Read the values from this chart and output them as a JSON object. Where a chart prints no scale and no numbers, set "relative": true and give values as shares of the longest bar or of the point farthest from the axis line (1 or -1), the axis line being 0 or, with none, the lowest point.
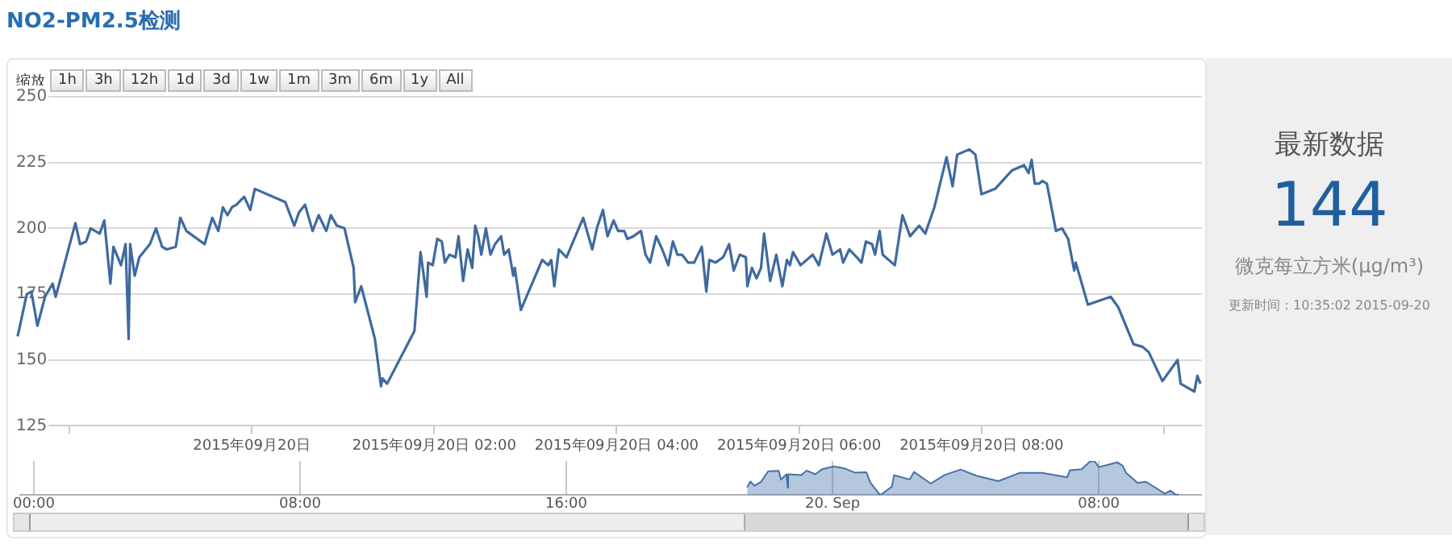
{
  "chart_data": [
    {
      "type": "line",
      "title": "NO2-PM2.5检测",
      "color": "#3f6a9e",
      "grid": "y",
      "marker": "none",
      "annotations": [
        "缩放",
        "1h",
        "3h",
        "12h",
        "1d",
        "3d",
        "1w",
        "1m",
        "3m",
        "6m",
        "1y",
        "All"
      ],
      "xlim": [
        "2015-09-19T21:25",
        "2015-09-20T10:25"
      ],
      "ylim": [
        125,
        250
      ],
      "yticks": [
        125,
        150,
        175,
        200,
        225,
        250
      ],
      "xticks": [
        {
          "value": "2015-09-19T22:00",
          "label": null
        },
        {
          "value": "2015-09-20T00:00",
          "label": "2015年09月20日"
        },
        {
          "value": "2015-09-20T02:00",
          "label": "2015年09月20日 02:00"
        },
        {
          "value": "2015-09-20T04:00",
          "label": "2015年09月20日 04:00"
        },
        {
          "value": "2015-09-20T06:00",
          "label": "2015年09月20日 06:00"
        },
        {
          "value": "2015-09-20T08:00",
          "label": "2015年09月20日 08:00"
        },
        {
          "value": "2015-09-20T10:00",
          "label": null
        }
      ],
      "x": [
        "2015-09-19T21:26",
        "2015-09-19T21:32",
        "2015-09-19T21:35",
        "2015-09-19T21:39",
        "2015-09-19T21:44",
        "2015-09-19T21:49",
        "2015-09-19T21:51",
        "2015-09-19T22:04",
        "2015-09-19T22:07",
        "2015-09-19T22:11",
        "2015-09-19T22:14",
        "2015-09-19T22:20",
        "2015-09-19T22:23",
        "2015-09-19T22:27",
        "2015-09-19T22:29",
        "2015-09-19T22:34",
        "2015-09-19T22:37",
        "2015-09-19T22:39",
        "2015-09-19T22:40",
        "2015-09-19T22:43",
        "2015-09-19T22:46",
        "2015-09-19T22:53",
        "2015-09-19T22:57",
        "2015-09-19T23:01",
        "2015-09-19T23:04",
        "2015-09-19T23:10",
        "2015-09-19T23:13",
        "2015-09-19T23:17",
        "2015-09-19T23:29",
        "2015-09-19T23:34",
        "2015-09-19T23:38",
        "2015-09-19T23:41",
        "2015-09-19T23:44",
        "2015-09-19T23:47",
        "2015-09-19T23:50",
        "2015-09-19T23:55",
        "2015-09-19T23:59",
        "2015-09-20T00:02",
        "2015-09-20T00:22",
        "2015-09-20T00:28",
        "2015-09-20T00:31",
        "2015-09-20T00:35",
        "2015-09-20T00:40",
        "2015-09-20T00:44",
        "2015-09-20T00:49",
        "2015-09-20T00:52",
        "2015-09-20T00:56",
        "2015-09-20T01:01",
        "2015-09-20T01:07",
        "2015-09-20T01:08",
        "2015-09-20T01:12",
        "2015-09-20T01:21",
        "2015-09-20T01:25",
        "2015-09-20T01:26",
        "2015-09-20T01:29",
        "2015-09-20T01:47",
        "2015-09-20T01:51",
        "2015-09-20T01:55",
        "2015-09-20T01:56",
        "2015-09-20T01:59",
        "2015-09-20T02:02",
        "2015-09-20T02:05",
        "2015-09-20T02:07",
        "2015-09-20T02:10",
        "2015-09-20T02:14",
        "2015-09-20T02:16",
        "2015-09-20T02:19",
        "2015-09-20T02:22",
        "2015-09-20T02:25",
        "2015-09-20T02:27",
        "2015-09-20T02:29",
        "2015-09-20T02:31",
        "2015-09-20T02:34",
        "2015-09-20T02:37",
        "2015-09-20T02:40",
        "2015-09-20T02:44",
        "2015-09-20T02:46",
        "2015-09-20T02:49",
        "2015-09-20T02:52",
        "2015-09-20T02:53",
        "2015-09-20T02:57",
        "2015-09-20T03:11",
        "2015-09-20T03:15",
        "2015-09-20T03:17",
        "2015-09-20T03:19",
        "2015-09-20T03:22",
        "2015-09-20T03:27",
        "2015-09-20T03:38",
        "2015-09-20T03:40",
        "2015-09-20T03:44",
        "2015-09-20T03:47",
        "2015-09-20T03:51",
        "2015-09-20T03:54",
        "2015-09-20T03:58",
        "2015-09-20T04:01",
        "2015-09-20T04:05",
        "2015-09-20T04:07",
        "2015-09-20T04:11",
        "2015-09-20T04:16",
        "2015-09-20T04:19",
        "2015-09-20T04:22",
        "2015-09-20T04:26",
        "2015-09-20T04:30",
        "2015-09-20T04:34",
        "2015-09-20T04:37",
        "2015-09-20T04:40",
        "2015-09-20T04:43",
        "2015-09-20T04:47",
        "2015-09-20T04:51",
        "2015-09-20T04:56",
        "2015-09-20T04:59",
        "2015-09-20T05:01",
        "2015-09-20T05:05",
        "2015-09-20T05:10",
        "2015-09-20T05:14",
        "2015-09-20T05:17",
        "2015-09-20T05:21",
        "2015-09-20T05:25",
        "2015-09-20T05:26",
        "2015-09-20T05:29",
        "2015-09-20T05:32",
        "2015-09-20T05:35",
        "2015-09-20T05:37",
        "2015-09-20T05:41",
        "2015-09-20T05:45",
        "2015-09-20T05:49",
        "2015-09-20T05:52",
        "2015-09-20T05:54",
        "2015-09-20T05:56",
        "2015-09-20T06:01",
        "2015-09-20T06:09",
        "2015-09-20T06:13",
        "2015-09-20T06:18",
        "2015-09-20T06:22",
        "2015-09-20T06:27",
        "2015-09-20T06:29",
        "2015-09-20T06:33",
        "2015-09-20T06:38",
        "2015-09-20T06:41",
        "2015-09-20T06:44",
        "2015-09-20T06:48",
        "2015-09-20T06:50",
        "2015-09-20T06:53",
        "2015-09-20T06:55",
        "2015-09-20T07:03",
        "2015-09-20T07:08",
        "2015-09-20T07:13",
        "2015-09-20T07:19",
        "2015-09-20T07:23",
        "2015-09-20T07:29",
        "2015-09-20T07:37",
        "2015-09-20T07:41",
        "2015-09-20T07:44",
        "2015-09-20T07:52",
        "2015-09-20T07:56",
        "2015-09-20T08:00",
        "2015-09-20T08:09",
        "2015-09-20T08:20",
        "2015-09-20T08:28",
        "2015-09-20T08:31",
        "2015-09-20T08:33",
        "2015-09-20T08:35",
        "2015-09-20T08:38",
        "2015-09-20T08:40",
        "2015-09-20T08:43",
        "2015-09-20T08:49",
        "2015-09-20T08:53",
        "2015-09-20T08:57",
        "2015-09-20T09:01",
        "2015-09-20T09:02",
        "2015-09-20T09:10",
        "2015-09-20T09:25",
        "2015-09-20T09:30",
        "2015-09-20T09:40",
        "2015-09-20T09:46",
        "2015-09-20T09:50",
        "2015-09-20T09:59",
        "2015-09-20T10:09",
        "2015-09-20T10:11",
        "2015-09-20T10:20",
        "2015-09-20T10:22",
        "2015-09-20T10:24"
      ],
      "values": [
        159,
        175,
        176,
        163,
        174,
        179,
        174,
        202,
        194,
        195,
        200,
        198,
        203,
        179,
        193,
        186,
        194,
        158,
        194,
        182,
        189,
        194,
        200,
        193,
        192,
        193,
        204,
        199,
        194,
        204,
        199,
        208,
        205,
        208,
        209,
        212,
        207,
        215,
        210,
        201,
        206,
        209,
        199,
        205,
        199,
        205,
        201,
        200,
        185,
        172,
        178,
        158,
        140,
        143,
        141,
        161,
        191,
        174,
        187,
        186,
        196,
        195,
        187,
        190,
        189,
        197,
        180,
        192,
        185,
        201,
        197,
        190,
        200,
        190,
        194,
        197,
        190,
        192,
        182,
        185,
        169,
        188,
        186,
        188,
        178,
        192,
        189,
        204,
        200,
        192,
        200,
        207,
        197,
        203,
        199,
        199,
        196,
        197,
        199,
        190,
        187,
        197,
        192,
        186,
        195,
        190,
        190,
        187,
        187,
        193,
        176,
        188,
        187,
        189,
        194,
        184,
        190,
        189,
        178,
        185,
        181,
        185,
        198,
        180,
        190,
        178,
        188,
        186,
        191,
        186,
        190,
        186,
        198,
        190,
        192,
        187,
        192,
        189,
        187,
        195,
        194,
        190,
        199,
        190,
        186,
        205,
        197,
        201,
        198,
        208,
        227,
        216,
        228,
        230,
        228,
        213,
        215,
        222,
        224,
        221,
        226,
        217,
        217,
        218,
        217,
        199,
        200,
        196,
        184,
        187,
        171,
        174,
        170,
        156,
        155,
        153,
        142,
        150,
        141,
        138,
        144,
        141
      ]
    },
    {
      "type": "area",
      "relative": true,
      "color": "#4572a7",
      "grid": "x",
      "tick_labels": "x",
      "xlim": [
        "2015-09-18T23:36",
        "2015-09-20T11:06"
      ],
      "xticks": [
        {
          "value": "2015-09-19T00:00",
          "label": "00:00"
        },
        {
          "value": "2015-09-19T08:00",
          "label": "08:00"
        },
        {
          "value": "2015-09-19T16:00",
          "label": "16:00"
        },
        {
          "value": "2015-09-20T00:00",
          "label": "20. Sep"
        },
        {
          "value": "2015-09-20T08:00",
          "label": "08:00"
        }
      ],
      "x": [
        "2015-09-19T21:26",
        "2015-09-19T21:32",
        "2015-09-19T21:39",
        "2015-09-19T21:51",
        "2015-09-19T22:04",
        "2015-09-19T22:23",
        "2015-09-19T22:27",
        "2015-09-19T22:37",
        "2015-09-19T22:39",
        "2015-09-19T22:40",
        "2015-09-19T23:04",
        "2015-09-19T23:13",
        "2015-09-19T23:29",
        "2015-09-19T23:41",
        "2015-09-20T00:02",
        "2015-09-20T00:22",
        "2015-09-20T00:40",
        "2015-09-20T01:01",
        "2015-09-20T01:08",
        "2015-09-20T01:25",
        "2015-09-20T01:29",
        "2015-09-20T01:47",
        "2015-09-20T01:51",
        "2015-09-20T02:19",
        "2015-09-20T02:27",
        "2015-09-20T02:57",
        "2015-09-20T03:22",
        "2015-09-20T03:51",
        "2015-09-20T04:19",
        "2015-09-20T04:59",
        "2015-09-20T05:37",
        "2015-09-20T06:18",
        "2015-09-20T07:03",
        "2015-09-20T07:08",
        "2015-09-20T07:29",
        "2015-09-20T07:44",
        "2015-09-20T07:52",
        "2015-09-20T08:00",
        "2015-09-20T08:33",
        "2015-09-20T08:43",
        "2015-09-20T08:49",
        "2015-09-20T09:10",
        "2015-09-20T09:25",
        "2015-09-20T09:46",
        "2015-09-20T09:59",
        "2015-09-20T10:09",
        "2015-09-20T10:20",
        "2015-09-20T10:24"
      ],
      "values": [
        0.23,
        0.4,
        0.27,
        0.39,
        0.7,
        0.71,
        0.45,
        0.61,
        0.22,
        0.61,
        0.59,
        0.72,
        0.61,
        0.76,
        0.84,
        0.78,
        0.66,
        0.67,
        0.37,
        0.02,
        0.03,
        0.25,
        0.58,
        0.46,
        0.68,
        0.34,
        0.59,
        0.75,
        0.57,
        0.41,
        0.65,
        0.65,
        0.52,
        0.73,
        0.76,
        0.98,
        1,
        0.82,
        0.96,
        0.86,
        0.66,
        0.36,
        0.39,
        0.18,
        0.04,
        0.13,
        0,
        0.03
      ]
    },
    {
      "type": "other",
      "title": "最新数据",
      "annotations": [
        "144",
        "微克每立方米(μg/m³)",
        "更新时间：10:35:02 2015-09-20"
      ]
    }
  ]
}
